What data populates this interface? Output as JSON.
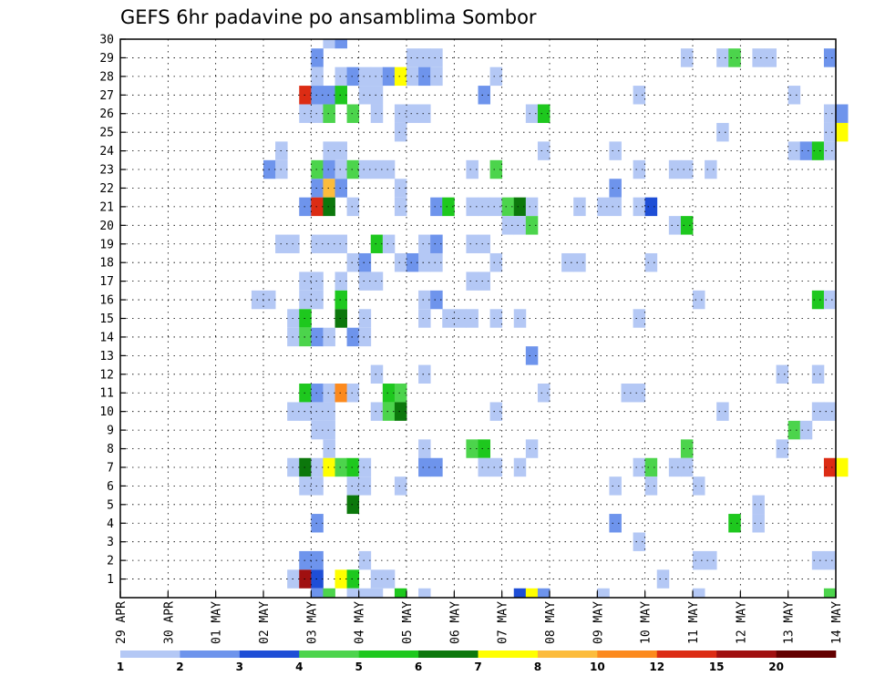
{
  "chart_data": {
    "type": "heatmap",
    "title": "GEFS 6hr padavine po ansamblima Sombor",
    "x_tick_labels": [
      "29 APR",
      "30 APR",
      "01 MAY",
      "02 MAY",
      "03 MAY",
      "04 MAY",
      "05 MAY",
      "06 MAY",
      "07 MAY",
      "08 MAY",
      "09 MAY",
      "10 MAY",
      "11 MAY",
      "12 MAY",
      "13 MAY",
      "14 MAY"
    ],
    "x_range_days": [
      0,
      15
    ],
    "y_tick_labels": [
      "1",
      "2",
      "3",
      "4",
      "5",
      "6",
      "7",
      "8",
      "9",
      "10",
      "11",
      "12",
      "13",
      "14",
      "15",
      "16",
      "17",
      "18",
      "19",
      "20",
      "21",
      "22",
      "23",
      "24",
      "25",
      "26",
      "27",
      "28",
      "29",
      "30"
    ],
    "y_range": [
      0,
      30
    ],
    "grid": true,
    "colorbar": {
      "placement": "bottom",
      "tick_labels": [
        "1",
        "2",
        "3",
        "4",
        "5",
        "6",
        "7",
        "8",
        "10",
        "12",
        "15",
        "20"
      ],
      "colors": [
        "#b4c8f5",
        "#6e94ec",
        "#1e4ed6",
        "#4cd44c",
        "#1ec81e",
        "#0c780c",
        "#ffff00",
        "#fcbc3c",
        "#fc8a1e",
        "#dc2c14",
        "#a01010",
        "#640000"
      ]
    },
    "cells": [
      [
        4.25,
        30,
        1
      ],
      [
        4.5,
        30,
        2
      ],
      [
        4.0,
        29,
        2
      ],
      [
        6.0,
        29,
        1
      ],
      [
        6.25,
        29,
        1
      ],
      [
        6.5,
        29,
        1
      ],
      [
        11.75,
        29,
        1
      ],
      [
        12.5,
        29,
        1
      ],
      [
        12.75,
        29,
        4
      ],
      [
        13.25,
        29,
        1
      ],
      [
        13.5,
        29,
        1
      ],
      [
        14.75,
        29,
        2
      ],
      [
        4.0,
        28,
        1
      ],
      [
        4.5,
        28,
        1
      ],
      [
        4.75,
        28,
        2
      ],
      [
        5.0,
        28,
        1
      ],
      [
        5.25,
        28,
        1
      ],
      [
        5.5,
        28,
        2
      ],
      [
        5.75,
        28,
        7
      ],
      [
        6.0,
        28,
        1
      ],
      [
        6.25,
        28,
        2
      ],
      [
        6.5,
        28,
        1
      ],
      [
        7.75,
        28,
        1
      ],
      [
        3.75,
        27,
        10
      ],
      [
        4.0,
        27,
        2
      ],
      [
        4.25,
        27,
        2
      ],
      [
        4.5,
        27,
        5
      ],
      [
        5.0,
        27,
        1
      ],
      [
        5.25,
        27,
        1
      ],
      [
        7.5,
        27,
        2
      ],
      [
        10.75,
        27,
        1
      ],
      [
        14.0,
        27,
        1
      ],
      [
        3.75,
        26,
        1
      ],
      [
        4.0,
        26,
        1
      ],
      [
        4.25,
        26,
        4
      ],
      [
        4.75,
        26,
        4
      ],
      [
        5.25,
        26,
        1
      ],
      [
        5.75,
        26,
        1
      ],
      [
        6.0,
        26,
        1
      ],
      [
        6.25,
        26,
        1
      ],
      [
        8.5,
        26,
        1
      ],
      [
        8.75,
        26,
        5
      ],
      [
        14.75,
        26,
        1
      ],
      [
        15.0,
        26,
        2
      ],
      [
        5.75,
        25,
        1
      ],
      [
        12.5,
        25,
        1
      ],
      [
        14.75,
        25,
        1
      ],
      [
        15.0,
        25,
        7
      ],
      [
        3.25,
        24,
        1
      ],
      [
        4.25,
        24,
        1
      ],
      [
        4.5,
        24,
        1
      ],
      [
        8.75,
        24,
        1
      ],
      [
        10.25,
        24,
        1
      ],
      [
        14.0,
        24,
        1
      ],
      [
        14.25,
        24,
        2
      ],
      [
        14.5,
        24,
        5
      ],
      [
        14.75,
        24,
        1
      ],
      [
        3.0,
        23,
        2
      ],
      [
        3.25,
        23,
        1
      ],
      [
        4.0,
        23,
        4
      ],
      [
        4.25,
        23,
        2
      ],
      [
        4.5,
        23,
        1
      ],
      [
        4.75,
        23,
        4
      ],
      [
        5.0,
        23,
        1
      ],
      [
        5.25,
        23,
        1
      ],
      [
        5.5,
        23,
        1
      ],
      [
        7.25,
        23,
        1
      ],
      [
        7.75,
        23,
        4
      ],
      [
        10.75,
        23,
        1
      ],
      [
        11.5,
        23,
        1
      ],
      [
        11.75,
        23,
        1
      ],
      [
        12.25,
        23,
        1
      ],
      [
        4.0,
        22,
        2
      ],
      [
        4.25,
        22,
        8
      ],
      [
        4.5,
        22,
        2
      ],
      [
        5.75,
        22,
        1
      ],
      [
        10.25,
        22,
        2
      ],
      [
        3.75,
        21,
        2
      ],
      [
        4.0,
        21,
        10
      ],
      [
        4.25,
        21,
        6
      ],
      [
        4.75,
        21,
        1
      ],
      [
        5.75,
        21,
        1
      ],
      [
        6.5,
        21,
        2
      ],
      [
        6.75,
        21,
        5
      ],
      [
        7.25,
        21,
        1
      ],
      [
        7.5,
        21,
        1
      ],
      [
        7.75,
        21,
        1
      ],
      [
        8.0,
        21,
        4
      ],
      [
        8.25,
        21,
        6
      ],
      [
        8.5,
        21,
        1
      ],
      [
        9.5,
        21,
        1
      ],
      [
        10.0,
        21,
        1
      ],
      [
        10.25,
        21,
        1
      ],
      [
        10.75,
        21,
        1
      ],
      [
        11.0,
        21,
        3
      ],
      [
        8.0,
        20,
        1
      ],
      [
        8.25,
        20,
        1
      ],
      [
        8.5,
        20,
        4
      ],
      [
        11.5,
        20,
        1
      ],
      [
        11.75,
        20,
        5
      ],
      [
        3.25,
        19,
        1
      ],
      [
        3.5,
        19,
        1
      ],
      [
        4.0,
        19,
        1
      ],
      [
        4.25,
        19,
        1
      ],
      [
        4.5,
        19,
        1
      ],
      [
        5.25,
        19,
        5
      ],
      [
        5.5,
        19,
        1
      ],
      [
        6.25,
        19,
        1
      ],
      [
        6.5,
        19,
        2
      ],
      [
        7.25,
        19,
        1
      ],
      [
        7.5,
        19,
        1
      ],
      [
        4.75,
        18,
        1
      ],
      [
        5.0,
        18,
        2
      ],
      [
        5.75,
        18,
        1
      ],
      [
        6.0,
        18,
        2
      ],
      [
        6.25,
        18,
        1
      ],
      [
        6.5,
        18,
        1
      ],
      [
        7.75,
        18,
        1
      ],
      [
        9.25,
        18,
        1
      ],
      [
        9.5,
        18,
        1
      ],
      [
        11.0,
        18,
        1
      ],
      [
        3.75,
        17,
        1
      ],
      [
        4.0,
        17,
        1
      ],
      [
        4.5,
        17,
        1
      ],
      [
        5.0,
        17,
        1
      ],
      [
        5.25,
        17,
        1
      ],
      [
        7.25,
        17,
        1
      ],
      [
        7.5,
        17,
        1
      ],
      [
        2.75,
        16,
        1
      ],
      [
        3.0,
        16,
        1
      ],
      [
        3.75,
        16,
        1
      ],
      [
        4.0,
        16,
        1
      ],
      [
        4.5,
        16,
        5
      ],
      [
        6.25,
        16,
        1
      ],
      [
        6.5,
        16,
        2
      ],
      [
        12.0,
        16,
        1
      ],
      [
        14.5,
        16,
        5
      ],
      [
        14.75,
        16,
        1
      ],
      [
        3.5,
        15,
        1
      ],
      [
        3.75,
        15,
        5
      ],
      [
        4.5,
        15,
        6
      ],
      [
        5.0,
        15,
        1
      ],
      [
        6.25,
        15,
        1
      ],
      [
        6.75,
        15,
        1
      ],
      [
        7.0,
        15,
        1
      ],
      [
        7.25,
        15,
        1
      ],
      [
        7.75,
        15,
        1
      ],
      [
        8.25,
        15,
        1
      ],
      [
        10.75,
        15,
        1
      ],
      [
        3.5,
        14,
        1
      ],
      [
        3.75,
        14,
        4
      ],
      [
        4.0,
        14,
        2
      ],
      [
        4.25,
        14,
        1
      ],
      [
        4.75,
        14,
        2
      ],
      [
        5.0,
        14,
        1
      ],
      [
        8.5,
        13,
        2
      ],
      [
        5.25,
        12,
        1
      ],
      [
        6.25,
        12,
        1
      ],
      [
        13.75,
        12,
        1
      ],
      [
        14.5,
        12,
        1
      ],
      [
        3.75,
        11,
        5
      ],
      [
        4.0,
        11,
        2
      ],
      [
        4.25,
        11,
        1
      ],
      [
        4.5,
        11,
        9
      ],
      [
        4.75,
        11,
        1
      ],
      [
        5.5,
        11,
        5
      ],
      [
        5.75,
        11,
        4
      ],
      [
        8.75,
        11,
        1
      ],
      [
        10.5,
        11,
        1
      ],
      [
        10.75,
        11,
        1
      ],
      [
        3.5,
        10,
        1
      ],
      [
        3.75,
        10,
        1
      ],
      [
        4.0,
        10,
        1
      ],
      [
        4.25,
        10,
        1
      ],
      [
        5.25,
        10,
        1
      ],
      [
        5.5,
        10,
        4
      ],
      [
        5.75,
        10,
        6
      ],
      [
        7.75,
        10,
        1
      ],
      [
        12.5,
        10,
        1
      ],
      [
        14.5,
        10,
        1
      ],
      [
        14.75,
        10,
        1
      ],
      [
        4.0,
        9,
        1
      ],
      [
        4.25,
        9,
        1
      ],
      [
        14.0,
        9,
        4
      ],
      [
        14.25,
        9,
        1
      ],
      [
        4.25,
        8,
        1
      ],
      [
        6.25,
        8,
        1
      ],
      [
        7.25,
        8,
        4
      ],
      [
        7.5,
        8,
        5
      ],
      [
        8.5,
        8,
        1
      ],
      [
        11.75,
        8,
        4
      ],
      [
        13.75,
        8,
        1
      ],
      [
        3.5,
        7,
        1
      ],
      [
        3.75,
        7,
        6
      ],
      [
        4.0,
        7,
        1
      ],
      [
        4.25,
        7,
        7
      ],
      [
        4.5,
        7,
        4
      ],
      [
        4.75,
        7,
        5
      ],
      [
        5.0,
        7,
        1
      ],
      [
        6.25,
        7,
        2
      ],
      [
        6.5,
        7,
        2
      ],
      [
        7.5,
        7,
        1
      ],
      [
        7.75,
        7,
        1
      ],
      [
        8.25,
        7,
        1
      ],
      [
        10.75,
        7,
        1
      ],
      [
        11.0,
        7,
        4
      ],
      [
        11.5,
        7,
        1
      ],
      [
        11.75,
        7,
        1
      ],
      [
        14.75,
        7,
        10
      ],
      [
        15.0,
        7,
        7
      ],
      [
        3.75,
        6,
        1
      ],
      [
        4.0,
        6,
        1
      ],
      [
        4.75,
        6,
        1
      ],
      [
        5.0,
        6,
        1
      ],
      [
        5.75,
        6,
        1
      ],
      [
        10.25,
        6,
        1
      ],
      [
        11.0,
        6,
        1
      ],
      [
        12.0,
        6,
        1
      ],
      [
        4.75,
        5,
        6
      ],
      [
        13.25,
        5,
        1
      ],
      [
        4.0,
        4,
        2
      ],
      [
        10.25,
        4,
        2
      ],
      [
        12.75,
        4,
        5
      ],
      [
        13.25,
        4,
        1
      ],
      [
        10.75,
        3,
        1
      ],
      [
        3.75,
        2,
        2
      ],
      [
        4.0,
        2,
        2
      ],
      [
        5.0,
        2,
        1
      ],
      [
        12.0,
        2,
        1
      ],
      [
        12.25,
        2,
        1
      ],
      [
        14.5,
        2,
        1
      ],
      [
        14.75,
        2,
        1
      ],
      [
        3.5,
        1,
        1
      ],
      [
        3.75,
        1,
        11
      ],
      [
        4.0,
        1,
        3
      ],
      [
        4.5,
        1,
        7
      ],
      [
        4.75,
        1,
        5
      ],
      [
        5.25,
        1,
        1
      ],
      [
        5.5,
        1,
        1
      ],
      [
        11.25,
        1,
        1
      ],
      [
        4.0,
        0,
        2
      ],
      [
        4.25,
        0,
        4
      ],
      [
        4.75,
        0,
        1
      ],
      [
        5.0,
        0,
        1
      ],
      [
        5.25,
        0,
        1
      ],
      [
        5.75,
        0,
        5
      ],
      [
        6.25,
        0,
        1
      ],
      [
        8.25,
        0,
        3
      ],
      [
        8.5,
        0,
        7
      ],
      [
        8.75,
        0,
        2
      ],
      [
        10.0,
        0,
        1
      ],
      [
        12.0,
        0,
        1
      ],
      [
        14.75,
        0,
        4
      ]
    ]
  }
}
